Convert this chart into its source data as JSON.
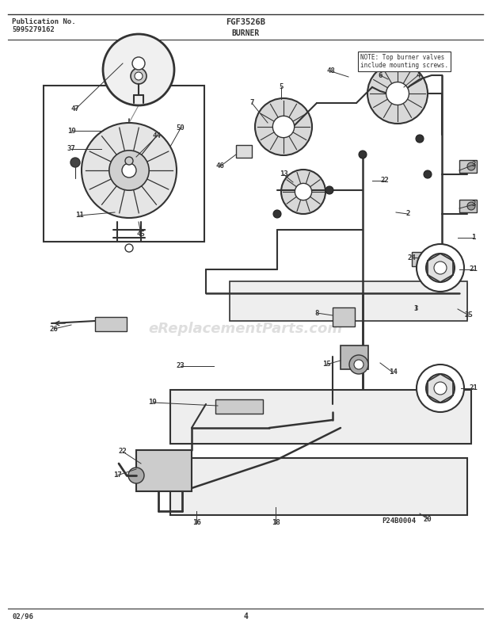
{
  "title_left_line1": "Publication No.",
  "title_left_line2": "5995279162",
  "title_center": "FGF3526B",
  "title_sub": "BURNER",
  "footer_left": "02/96",
  "footer_center": "4",
  "watermark": "eReplacementParts.com",
  "part_code": "P24B0004",
  "note_text": "NOTE: Top burner valves\ninclude mounting screws.",
  "bg_color": "#ffffff",
  "line_color": "#333333",
  "label_color": "#111111",
  "fig_width": 6.2,
  "fig_height": 7.9,
  "dpi": 100
}
